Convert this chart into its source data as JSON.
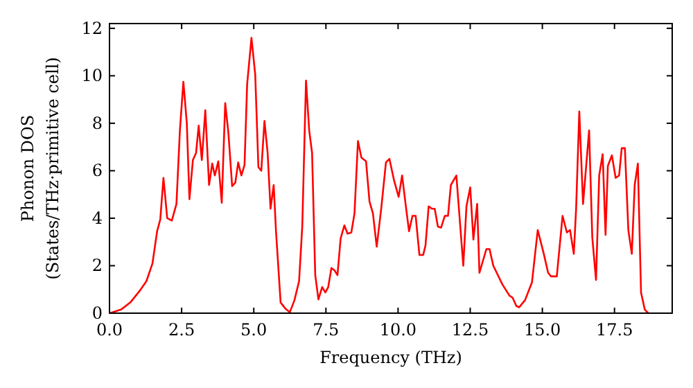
{
  "chart_data": {
    "type": "line",
    "xlabel": "Frequency (THz)",
    "ylabel": "Phonon DOS\n(States/THz·primitive cell)",
    "xlim": [
      0,
      19.5
    ],
    "ylim": [
      0,
      12.2
    ],
    "xticks": [
      {
        "value": 0,
        "label": "0.0"
      },
      {
        "value": 2.5,
        "label": "2.5"
      },
      {
        "value": 5,
        "label": "5.0"
      },
      {
        "value": 7.5,
        "label": "7.5"
      },
      {
        "value": 10,
        "label": "10.0"
      },
      {
        "value": 12.5,
        "label": "12.5"
      },
      {
        "value": 15,
        "label": "15.0"
      },
      {
        "value": 17.5,
        "label": "17.5"
      }
    ],
    "yticks": [
      0,
      2,
      4,
      6,
      8,
      10,
      12
    ],
    "grid": false,
    "marker": "none",
    "line_style": "solid",
    "series": [
      {
        "color": "#ff0000",
        "x": [
          0,
          0.4,
          0.72,
          1.04,
          1.28,
          1.49,
          1.65,
          1.76,
          1.87,
          2.0,
          2.16,
          2.32,
          2.44,
          2.56,
          2.68,
          2.77,
          2.89,
          3.0,
          3.09,
          3.2,
          3.32,
          3.45,
          3.56,
          3.65,
          3.77,
          3.89,
          4.01,
          4.12,
          4.25,
          4.36,
          4.46,
          4.57,
          4.68,
          4.77,
          4.92,
          5.05,
          5.16,
          5.26,
          5.37,
          5.48,
          5.58,
          5.69,
          5.77,
          5.93,
          6.09,
          6.25,
          6.41,
          6.57,
          6.68,
          6.81,
          6.92,
          7.02,
          7.13,
          7.24,
          7.37,
          7.48,
          7.58,
          7.69,
          7.8,
          7.9,
          8.01,
          8.14,
          8.25,
          8.38,
          8.49,
          8.61,
          8.73,
          8.89,
          9.01,
          9.13,
          9.26,
          9.42,
          9.58,
          9.7,
          9.86,
          10.02,
          10.14,
          10.26,
          10.38,
          10.5,
          10.61,
          10.74,
          10.87,
          10.95,
          11.06,
          11.17,
          11.27,
          11.38,
          11.49,
          11.62,
          11.73,
          11.83,
          12.02,
          12.26,
          12.37,
          12.5,
          12.61,
          12.74,
          12.82,
          13.06,
          13.17,
          13.3,
          13.62,
          13.86,
          13.97,
          14.1,
          14.2,
          14.4,
          14.64,
          14.84,
          15.05,
          15.2,
          15.3,
          15.5,
          15.7,
          15.85,
          15.96,
          16.09,
          16.17,
          16.28,
          16.41,
          16.62,
          16.73,
          16.86,
          16.97,
          17.09,
          17.19,
          17.27,
          17.41,
          17.54,
          17.66,
          17.75,
          17.86,
          17.98,
          18.1,
          18.2,
          18.31,
          18.42,
          18.55,
          18.67
        ],
        "values": [
          0,
          0.15,
          0.45,
          0.93,
          1.35,
          2.1,
          3.45,
          3.95,
          5.7,
          4.0,
          3.9,
          4.6,
          7.7,
          9.75,
          8.0,
          4.8,
          6.45,
          6.75,
          7.9,
          6.45,
          8.55,
          5.4,
          6.3,
          5.8,
          6.4,
          4.65,
          8.85,
          7.6,
          5.35,
          5.5,
          6.35,
          5.8,
          6.25,
          9.65,
          11.6,
          10.05,
          6.15,
          6.0,
          8.1,
          6.75,
          4.4,
          5.4,
          3.45,
          0.45,
          0.2,
          0.04,
          0.55,
          1.35,
          3.65,
          9.8,
          7.7,
          6.75,
          1.6,
          0.58,
          1.1,
          0.87,
          1.1,
          1.9,
          1.8,
          1.6,
          3.15,
          3.7,
          3.35,
          3.4,
          4.2,
          7.25,
          6.55,
          6.4,
          4.7,
          4.2,
          2.8,
          4.45,
          6.35,
          6.5,
          5.6,
          4.9,
          5.8,
          4.6,
          3.45,
          4.1,
          4.1,
          2.45,
          2.45,
          2.85,
          4.5,
          4.4,
          4.4,
          3.65,
          3.6,
          4.1,
          4.1,
          5.4,
          5.8,
          2.0,
          4.5,
          5.3,
          3.1,
          4.6,
          1.7,
          2.7,
          2.7,
          2.0,
          1.2,
          0.74,
          0.65,
          0.3,
          0.25,
          0.55,
          1.3,
          3.5,
          2.5,
          1.7,
          1.55,
          1.55,
          4.1,
          3.4,
          3.5,
          2.5,
          4.4,
          8.5,
          4.6,
          7.7,
          3.2,
          1.4,
          5.8,
          6.7,
          3.3,
          6.2,
          6.65,
          5.7,
          5.8,
          6.95,
          6.95,
          3.5,
          2.5,
          5.4,
          6.3,
          0.87,
          0.15,
          0
        ]
      }
    ]
  }
}
